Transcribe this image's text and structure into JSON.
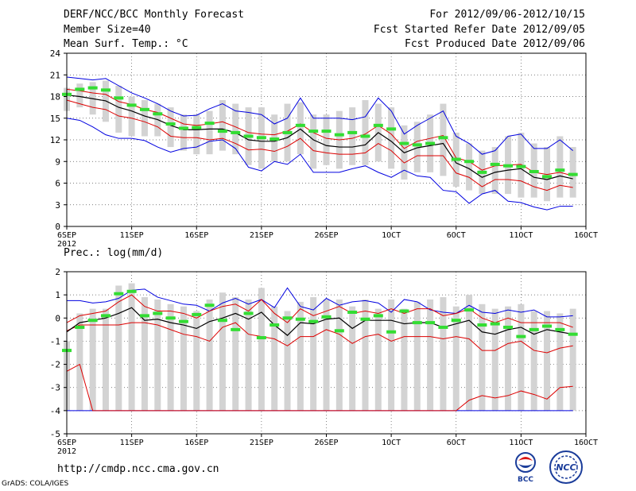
{
  "header": {
    "title": "DERF/NCC/BCC Monthly Forecast",
    "member": "Member Size=40",
    "variable": "Mean Surf. Temp.: °C",
    "period": "For 2012/09/06-2012/10/15",
    "refer": "Fcst Started Refer Date 2012/09/05",
    "produced": "Fcst Produced Date 2012/09/06"
  },
  "footer": {
    "url": "http://cmdp.ncc.cma.gov.cn",
    "credit": "GrADS: COLA/IGES",
    "logo_bcc": "BCC",
    "logo_ncc": "NCC"
  },
  "colors": {
    "max": "#0000e0",
    "min": "#0000e0",
    "p90": "#dd0000",
    "p10": "#dd0000",
    "median": "#000000",
    "box": "#d3d3d3",
    "clim": "#33dd33",
    "grid": "#555555"
  },
  "chart_data": [
    {
      "type": "box",
      "title": "Mean Surf. Temp.: °C",
      "ylim": [
        0,
        24
      ],
      "yticks": [
        0,
        3,
        6,
        9,
        12,
        15,
        18,
        21,
        24
      ],
      "xlim": [
        1,
        41
      ],
      "xticks": [
        {
          "day": 1,
          "label": "6SEP",
          "sub": "2012"
        },
        {
          "day": 6,
          "label": "11SEP"
        },
        {
          "day": 11,
          "label": "16SEP"
        },
        {
          "day": 16,
          "label": "21SEP"
        },
        {
          "day": 21,
          "label": "26SEP"
        },
        {
          "day": 26,
          "label": "1OCT"
        },
        {
          "day": 31,
          "label": "6OCT"
        },
        {
          "day": 36,
          "label": "11OCT"
        },
        {
          "day": 41,
          "label": "16OCT"
        }
      ],
      "days": [
        1,
        2,
        3,
        4,
        5,
        6,
        7,
        8,
        9,
        10,
        11,
        12,
        13,
        14,
        15,
        16,
        17,
        18,
        19,
        20,
        21,
        22,
        23,
        24,
        25,
        26,
        27,
        28,
        29,
        30,
        31,
        32,
        33,
        34,
        35,
        36,
        37,
        38,
        39,
        40
      ],
      "max": [
        20.7,
        20.5,
        20.3,
        20.5,
        19.5,
        18.5,
        17.8,
        17.0,
        16.0,
        15.3,
        15.4,
        16.3,
        17.0,
        16.0,
        15.8,
        15.5,
        14.2,
        15.0,
        17.8,
        15.0,
        15.0,
        15.0,
        14.8,
        15.2,
        17.8,
        16.0,
        12.8,
        14.0,
        15.0,
        16.0,
        12.5,
        11.5,
        10.0,
        10.5,
        12.5,
        12.8,
        10.8,
        10.8,
        12.0,
        10.5
      ],
      "max_bar": [
        19.2,
        19.8,
        20.0,
        20.2,
        19.5,
        18.0,
        17.5,
        17.0,
        16.5,
        15.5,
        15.5,
        16.0,
        17.5,
        17.0,
        16.5,
        16.5,
        15.5,
        17.0,
        17.2,
        15.5,
        15.5,
        16.0,
        16.5,
        17.5,
        17.0,
        16.5,
        14.0,
        14.5,
        15.5,
        17.0,
        13.0,
        11.5,
        10.5,
        11.0,
        12.5,
        13.0,
        11.5,
        11.0,
        12.5,
        11.0
      ],
      "p90": [
        19.0,
        18.8,
        18.5,
        18.3,
        17.3,
        16.9,
        16.2,
        15.8,
        15.0,
        14.2,
        14.0,
        14.2,
        14.5,
        13.8,
        13.0,
        12.8,
        12.7,
        13.2,
        14.2,
        13.0,
        12.2,
        12.0,
        12.2,
        12.8,
        14.0,
        12.8,
        10.8,
        11.8,
        12.2,
        12.6,
        9.5,
        9.0,
        7.8,
        8.4,
        8.5,
        8.6,
        7.5,
        7.2,
        7.5,
        7.0
      ],
      "median": [
        18.2,
        18.0,
        17.7,
        17.4,
        16.5,
        16.0,
        15.3,
        14.8,
        14.0,
        13.4,
        13.4,
        13.5,
        13.5,
        13.0,
        12.0,
        11.8,
        11.8,
        12.3,
        13.5,
        12.0,
        11.2,
        11.0,
        11.0,
        11.3,
        13.0,
        11.8,
        10.2,
        10.9,
        11.2,
        11.5,
        8.8,
        8.0,
        6.8,
        7.5,
        7.8,
        8.0,
        6.8,
        6.5,
        7.0,
        6.6
      ],
      "p10": [
        17.5,
        17.0,
        16.5,
        16.2,
        15.3,
        15.0,
        14.5,
        13.8,
        12.5,
        12.3,
        12.3,
        12.0,
        12.2,
        11.5,
        10.6,
        10.7,
        10.4,
        11.1,
        12.2,
        10.5,
        10.2,
        10.0,
        10.0,
        10.2,
        11.5,
        10.5,
        8.8,
        9.8,
        9.8,
        9.8,
        7.4,
        6.8,
        5.5,
        6.5,
        6.5,
        6.3,
        5.5,
        5.0,
        5.7,
        5.4
      ],
      "min_bar": [
        16.0,
        16.5,
        15.5,
        14.5,
        13.0,
        12.5,
        12.5,
        12.5,
        11.0,
        10.5,
        10.0,
        10.0,
        10.5,
        10.0,
        8.5,
        8.0,
        9.0,
        9.0,
        10.0,
        8.0,
        8.5,
        8.0,
        8.5,
        8.5,
        9.0,
        8.0,
        6.5,
        7.5,
        7.5,
        7.0,
        5.5,
        5.0,
        4.5,
        4.5,
        4.5,
        4.0,
        4.0,
        3.5,
        4.0,
        4.0
      ],
      "min": [
        15.0,
        14.7,
        13.8,
        12.7,
        12.2,
        12.2,
        11.9,
        11.0,
        10.3,
        10.8,
        11.0,
        11.8,
        12.0,
        10.8,
        8.2,
        7.7,
        9.0,
        8.6,
        10.0,
        7.5,
        7.5,
        7.5,
        8.0,
        8.4,
        7.5,
        6.8,
        7.8,
        7.0,
        6.8,
        5.0,
        4.8,
        3.2,
        4.5,
        5.0,
        3.5,
        3.3,
        2.7,
        2.3,
        2.8,
        2.8
      ],
      "clim": [
        18.3,
        19.0,
        19.2,
        18.9,
        17.8,
        16.8,
        16.2,
        15.6,
        14.2,
        13.6,
        13.7,
        14.3,
        13.2,
        13.0,
        12.5,
        12.3,
        12.1,
        13.0,
        14.0,
        13.2,
        13.2,
        12.7,
        13.0,
        12.5,
        14.0,
        13.5,
        11.5,
        11.3,
        11.5,
        12.3,
        9.3,
        9.0,
        7.5,
        8.6,
        8.4,
        8.3,
        7.6,
        6.9,
        7.8,
        7.2
      ]
    },
    {
      "type": "box",
      "title": "Prec.: log(mm/d)",
      "ylim": [
        -5,
        2
      ],
      "yticks": [
        -5,
        -4,
        -3,
        -2,
        -1,
        0,
        1,
        2
      ],
      "xlim": [
        1,
        41
      ],
      "xticks": [
        {
          "day": 1,
          "label": "6SEP",
          "sub": "2012"
        },
        {
          "day": 6,
          "label": "11SEP"
        },
        {
          "day": 11,
          "label": "16SEP"
        },
        {
          "day": 16,
          "label": "21SEP"
        },
        {
          "day": 21,
          "label": "26SEP"
        },
        {
          "day": 26,
          "label": "1OCT"
        },
        {
          "day": 31,
          "label": "6OCT"
        },
        {
          "day": 36,
          "label": "11OCT"
        },
        {
          "day": 41,
          "label": "16OCT"
        }
      ],
      "days": [
        1,
        2,
        3,
        4,
        5,
        6,
        7,
        8,
        9,
        10,
        11,
        12,
        13,
        14,
        15,
        16,
        17,
        18,
        19,
        20,
        21,
        22,
        23,
        24,
        25,
        26,
        27,
        28,
        29,
        30,
        31,
        32,
        33,
        34,
        35,
        36,
        37,
        38,
        39,
        40
      ],
      "max": [
        0.75,
        0.75,
        0.65,
        0.7,
        0.85,
        1.2,
        1.25,
        0.9,
        0.75,
        0.6,
        0.55,
        0.3,
        0.65,
        0.85,
        0.6,
        0.8,
        0.45,
        1.3,
        0.5,
        0.35,
        0.85,
        0.55,
        0.7,
        0.75,
        0.65,
        0.25,
        0.8,
        0.7,
        0.35,
        0.25,
        0.2,
        0.55,
        0.25,
        0.2,
        0.35,
        0.25,
        0.35,
        0.05,
        0.05,
        0.1
      ],
      "max_bar": [
        -1.0,
        0.2,
        0.4,
        0.4,
        1.4,
        1.5,
        0.9,
        0.8,
        0.6,
        0.5,
        0.3,
        0.8,
        1.1,
        0.9,
        0.8,
        1.3,
        0.5,
        0.3,
        0.7,
        0.9,
        0.8,
        0.8,
        0.5,
        0.8,
        0.4,
        0.8,
        0.4,
        0.7,
        0.8,
        0.9,
        0.5,
        1.0,
        0.6,
        0.4,
        0.5,
        0.6,
        0.3,
        0.3,
        0.2,
        0.4
      ],
      "p90": [
        -0.2,
        0.1,
        0.2,
        0.3,
        0.7,
        1.0,
        0.5,
        0.3,
        0.3,
        0.2,
        0.0,
        0.3,
        0.5,
        0.6,
        0.3,
        0.8,
        0.2,
        -0.2,
        0.4,
        0.1,
        0.3,
        0.5,
        0.2,
        0.3,
        0.2,
        0.4,
        0.2,
        0.4,
        0.4,
        0.1,
        0.2,
        0.4,
        0.0,
        -0.2,
        0.0,
        -0.2,
        -0.2,
        -0.2,
        -0.2,
        -0.4
      ],
      "median": [
        -0.6,
        -0.2,
        -0.1,
        0.0,
        0.2,
        0.45,
        -0.1,
        -0.05,
        -0.2,
        -0.3,
        -0.45,
        -0.15,
        0.0,
        0.2,
        -0.05,
        0.25,
        -0.3,
        -0.75,
        -0.2,
        -0.25,
        -0.05,
        0.0,
        -0.45,
        -0.1,
        -0.1,
        -0.1,
        -0.25,
        -0.2,
        -0.2,
        -0.4,
        -0.25,
        -0.1,
        -0.6,
        -0.7,
        -0.5,
        -0.4,
        -0.7,
        -0.5,
        -0.6,
        -0.7
      ],
      "p10": [
        -2.3,
        -2.0,
        -4.0,
        -4.0,
        -4.0,
        -4.0,
        -4.0,
        -4.0,
        -4.0,
        -4.0,
        -4.0,
        -4.0,
        -4.0,
        -4.0,
        -4.0,
        -4.0,
        -4.0,
        -4.0,
        -4.0,
        -4.0,
        -4.0,
        -4.0,
        -4.0,
        -4.0,
        -4.0,
        -4.0,
        -4.0,
        -4.0,
        -4.0,
        -4.0,
        -4.0,
        -3.55,
        -3.35,
        -3.45,
        -3.35,
        -3.15,
        -3.3,
        -3.5,
        -3.0,
        -2.95
      ],
      "min_bar": [
        -4.0,
        -4.0,
        -4.0,
        -4.0,
        -4.0,
        -4.0,
        -4.0,
        -4.0,
        -4.0,
        -4.0,
        -4.0,
        -4.0,
        -4.0,
        -4.0,
        -4.0,
        -4.0,
        -4.0,
        -4.0,
        -4.0,
        -4.0,
        -4.0,
        -4.0,
        -4.0,
        -4.0,
        -4.0,
        -4.0,
        -4.0,
        -4.0,
        -4.0,
        -4.0,
        -4.0,
        -4.0,
        -4.0,
        -4.0,
        -4.0,
        -4.0,
        -4.0,
        -4.0,
        -4.0,
        -4.0
      ],
      "min": [
        -4.0,
        -4.0,
        -4.0,
        -4.0,
        -4.0,
        -4.0,
        -4.0,
        -4.0,
        -4.0,
        -4.0,
        -4.0,
        -4.0,
        -4.0,
        -4.0,
        -4.0,
        -4.0,
        -4.0,
        -4.0,
        -4.0,
        -4.0,
        -4.0,
        -4.0,
        -4.0,
        -4.0,
        -4.0,
        -4.0,
        -4.0,
        -4.0,
        -4.0,
        -4.0,
        -4.0,
        -4.0,
        -4.0,
        -4.0,
        -4.0,
        -4.0,
        -4.0,
        -4.0,
        -4.0,
        -4.0
      ],
      "min_p90": [
        -0.55,
        -0.3,
        -0.3,
        -0.3,
        -0.3,
        -0.2,
        -0.2,
        -0.3,
        -0.5,
        -0.7,
        -0.8,
        -1.0,
        -0.4,
        -0.2,
        -0.7,
        -0.8,
        -0.9,
        -1.2,
        -0.8,
        -0.8,
        -0.5,
        -0.7,
        -1.1,
        -0.8,
        -0.7,
        -1.0,
        -0.8,
        -0.8,
        -0.8,
        -0.9,
        -0.8,
        -0.9,
        -1.4,
        -1.4,
        -1.1,
        -1.0,
        -1.4,
        -1.5,
        -1.3,
        -1.2
      ],
      "clim": [
        -1.4,
        -0.4,
        -0.1,
        0.1,
        1.05,
        1.15,
        0.1,
        0.2,
        0.0,
        -0.15,
        0.15,
        0.55,
        -0.1,
        -0.5,
        0.2,
        -0.85,
        -0.3,
        0.0,
        -0.05,
        -0.15,
        0.05,
        -0.55,
        0.25,
        -0.05,
        0.1,
        -0.6,
        0.3,
        -0.2,
        -0.2,
        -0.4,
        -0.1,
        0.35,
        -0.3,
        -0.25,
        -0.4,
        -0.8,
        -0.5,
        -0.35,
        -0.5,
        -0.7
      ]
    }
  ]
}
